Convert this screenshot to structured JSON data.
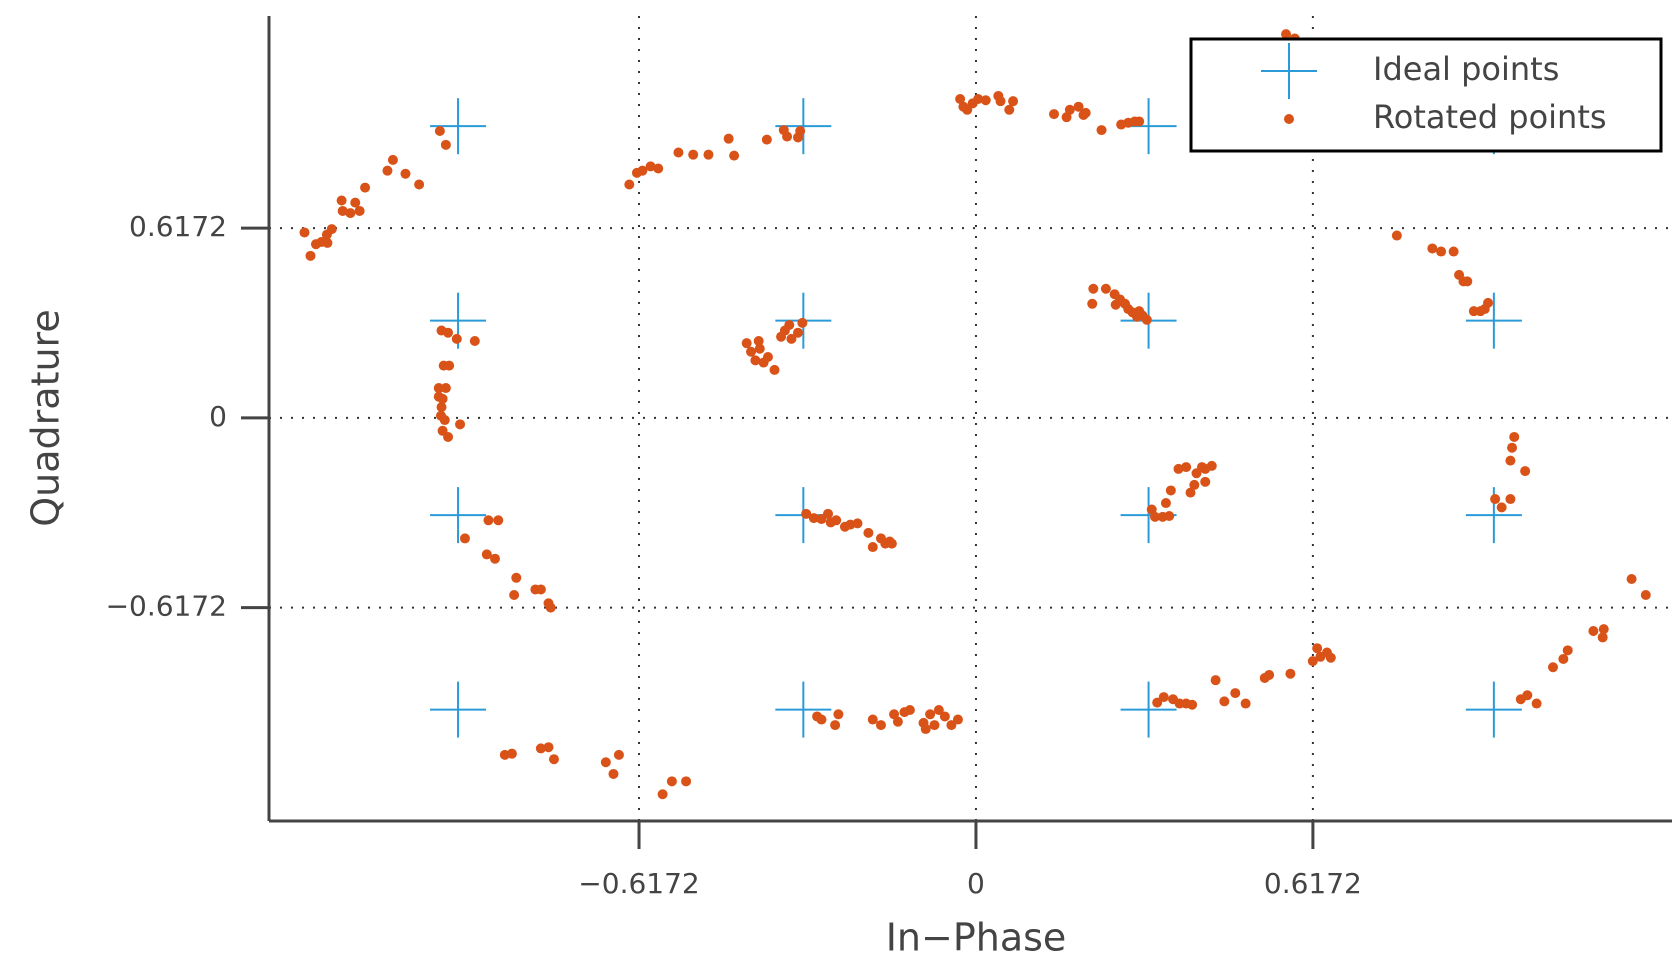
{
  "chart_data": {
    "type": "scatter",
    "xlabel": "In−Phase",
    "ylabel": "Quadrature",
    "xlim": [
      -1.295,
      1.275
    ],
    "ylim": [
      -1.311,
      1.307
    ],
    "xticks": [
      {
        "value": -0.6172,
        "label": "−0.6172"
      },
      0,
      0.6172
    ],
    "yticks": [
      {
        "value": -0.6172,
        "label": "−0.6172"
      },
      0,
      0.6172
    ],
    "grid": true,
    "legend": "upper right",
    "series": [
      {
        "name": "Ideal points",
        "color": "#2a9bd8",
        "marker": "plus",
        "x": [
          -0.9487,
          -0.9487,
          -0.9487,
          -0.9487,
          -0.3162,
          -0.3162,
          -0.3162,
          -0.3162,
          0.3162,
          0.3162,
          0.3162,
          0.3162,
          0.9487,
          0.9487,
          0.9487,
          0.9487
        ],
        "values": [
          0.9487,
          0.3162,
          -0.3162,
          -0.9487,
          0.9487,
          0.3162,
          -0.3162,
          -0.9487,
          0.9487,
          0.3162,
          -0.3162,
          -0.9487,
          0.9487,
          0.3162,
          -0.3162,
          -0.9487
        ]
      },
      {
        "name": "Rotated points",
        "color": "#d95319",
        "marker": "dot",
        "x": [
          -1.23,
          -1.219,
          -1.209,
          -1.199,
          -1.188,
          -1.189,
          -1.18,
          -1.162,
          -1.16,
          -1.146,
          -1.137,
          -1.129,
          -1.119,
          -1.078,
          -1.068,
          -1.045,
          -1.02,
          -0.982,
          -0.971,
          -0.635,
          -0.621,
          -0.611,
          -0.596,
          -0.582,
          -0.545,
          -0.518,
          -0.49,
          -0.453,
          -0.443,
          -0.383,
          -0.352,
          -0.346,
          -0.326,
          -0.322,
          -0.029,
          -0.023,
          -0.016,
          -0.006,
          0.004,
          0.018,
          0.041,
          0.045,
          0.061,
          0.068,
          0.143,
          0.166,
          0.172,
          0.188,
          0.197,
          0.201,
          0.23,
          0.266,
          0.279,
          0.291,
          0.299,
          0.568,
          0.584,
          0.771,
          0.836,
          0.852,
          0.875,
          0.885,
          0.893,
          0.9,
          0.912,
          0.924,
          0.932,
          0.938,
          -0.979,
          -0.967,
          -0.951,
          -0.918,
          -0.975,
          -0.965,
          -0.984,
          -0.971,
          -0.977,
          -0.984,
          -0.979,
          -0.98,
          -0.973,
          -0.945,
          -0.977,
          -0.967,
          -0.42,
          -0.412,
          -0.398,
          -0.404,
          -0.396,
          -0.389,
          -0.381,
          -0.369,
          -0.357,
          -0.35,
          -0.342,
          -0.338,
          -0.326,
          -0.318,
          0.215,
          0.213,
          0.238,
          0.254,
          0.256,
          0.264,
          0.273,
          0.279,
          0.287,
          0.299,
          0.305,
          0.313,
          0.295,
          0.322,
          0.328,
          0.342,
          0.354,
          0.348,
          0.357,
          0.371,
          0.385,
          0.393,
          0.4,
          0.404,
          0.414,
          0.42,
          0.42,
          0.432,
          0.986,
          0.982,
          0.979,
          1.006,
          0.951,
          0.963,
          0.979,
          -0.936,
          -0.893,
          -0.875,
          -0.896,
          -0.881,
          -0.842,
          -0.846,
          -0.807,
          -0.797,
          -0.783,
          -0.779,
          -0.311,
          -0.297,
          -0.283,
          -0.271,
          -0.266,
          -0.256,
          -0.24,
          -0.23,
          -0.217,
          -0.197,
          -0.189,
          -0.174,
          -0.166,
          -0.158,
          -0.154,
          -0.863,
          -0.85,
          -0.797,
          -0.783,
          -0.773,
          -0.678,
          -0.664,
          -0.654,
          -0.574,
          -0.557,
          -0.531,
          -0.291,
          -0.283,
          -0.258,
          -0.252,
          -0.189,
          -0.174,
          -0.15,
          -0.143,
          -0.131,
          -0.121,
          -0.096,
          -0.092,
          -0.084,
          -0.076,
          -0.068,
          -0.057,
          -0.045,
          -0.033,
          0.332,
          0.344,
          0.361,
          0.373,
          0.385,
          0.396,
          0.439,
          0.455,
          0.475,
          0.494,
          0.529,
          0.537,
          0.576,
          0.617,
          0.625,
          0.631,
          0.643,
          0.65,
          0.998,
          1.01,
          1.027,
          1.057,
          1.076,
          1.084,
          1.131,
          1.148,
          1.15,
          1.201,
          1.227
        ],
        "values": [
          0.603,
          0.527,
          0.565,
          0.572,
          0.569,
          0.596,
          0.614,
          0.707,
          0.673,
          0.666,
          0.7,
          0.673,
          0.749,
          0.804,
          0.839,
          0.794,
          0.759,
          0.933,
          0.888,
          0.759,
          0.797,
          0.804,
          0.818,
          0.811,
          0.863,
          0.856,
          0.856,
          0.908,
          0.853,
          0.905,
          0.936,
          0.915,
          0.912,
          0.933,
          1.037,
          1.012,
          1.002,
          1.023,
          1.037,
          1.033,
          1.047,
          1.03,
          1.002,
          1.03,
          0.988,
          0.978,
          1.002,
          1.012,
          0.985,
          0.992,
          0.936,
          0.954,
          0.96,
          0.964,
          0.964,
          1.248,
          1.234,
          0.593,
          0.551,
          0.541,
          0.541,
          0.465,
          0.444,
          0.444,
          0.347,
          0.347,
          0.354,
          0.374,
          0.284,
          0.277,
          0.257,
          0.25,
          0.17,
          0.17,
          0.097,
          0.097,
          0.062,
          0.069,
          0.035,
          0.007,
          -0.007,
          -0.021,
          -0.042,
          -0.062,
          0.243,
          0.215,
          0.25,
          0.187,
          0.225,
          0.18,
          0.198,
          0.156,
          0.264,
          0.284,
          0.302,
          0.257,
          0.277,
          0.309,
          0.42,
          0.371,
          0.42,
          0.402,
          0.368,
          0.385,
          0.371,
          0.354,
          0.343,
          0.347,
          0.333,
          0.319,
          0.329,
          -0.298,
          -0.322,
          -0.322,
          -0.319,
          -0.277,
          -0.236,
          -0.166,
          -0.16,
          -0.243,
          -0.218,
          -0.18,
          -0.16,
          -0.208,
          -0.166,
          -0.156,
          -0.062,
          -0.097,
          -0.139,
          -0.173,
          -0.264,
          -0.291,
          -0.264,
          -0.392,
          -0.333,
          -0.333,
          -0.444,
          -0.458,
          -0.52,
          -0.576,
          -0.558,
          -0.558,
          -0.603,
          -0.617,
          -0.312,
          -0.326,
          -0.329,
          -0.312,
          -0.34,
          -0.333,
          -0.354,
          -0.347,
          -0.343,
          -0.374,
          -0.42,
          -0.392,
          -0.409,
          -0.402,
          -0.409,
          -1.096,
          -1.092,
          -1.075,
          -1.071,
          -1.11,
          -1.12,
          -1.158,
          -1.096,
          -1.224,
          -1.182,
          -1.182,
          -0.971,
          -0.981,
          -0.999,
          -0.964,
          -0.981,
          -0.999,
          -0.964,
          -0.988,
          -0.957,
          -0.95,
          -0.992,
          -1.012,
          -0.964,
          -0.999,
          -0.95,
          -0.971,
          -0.999,
          -0.981,
          -0.926,
          -0.908,
          -0.915,
          -0.929,
          -0.929,
          -0.933,
          -0.853,
          -0.922,
          -0.895,
          -0.929,
          -0.846,
          -0.836,
          -0.832,
          -0.791,
          -0.749,
          -0.777,
          -0.763,
          -0.78,
          -0.915,
          -0.902,
          -0.929,
          -0.811,
          -0.784,
          -0.756,
          -0.693,
          -0.714,
          -0.687,
          -0.524,
          -0.576
        ]
      }
    ]
  }
}
